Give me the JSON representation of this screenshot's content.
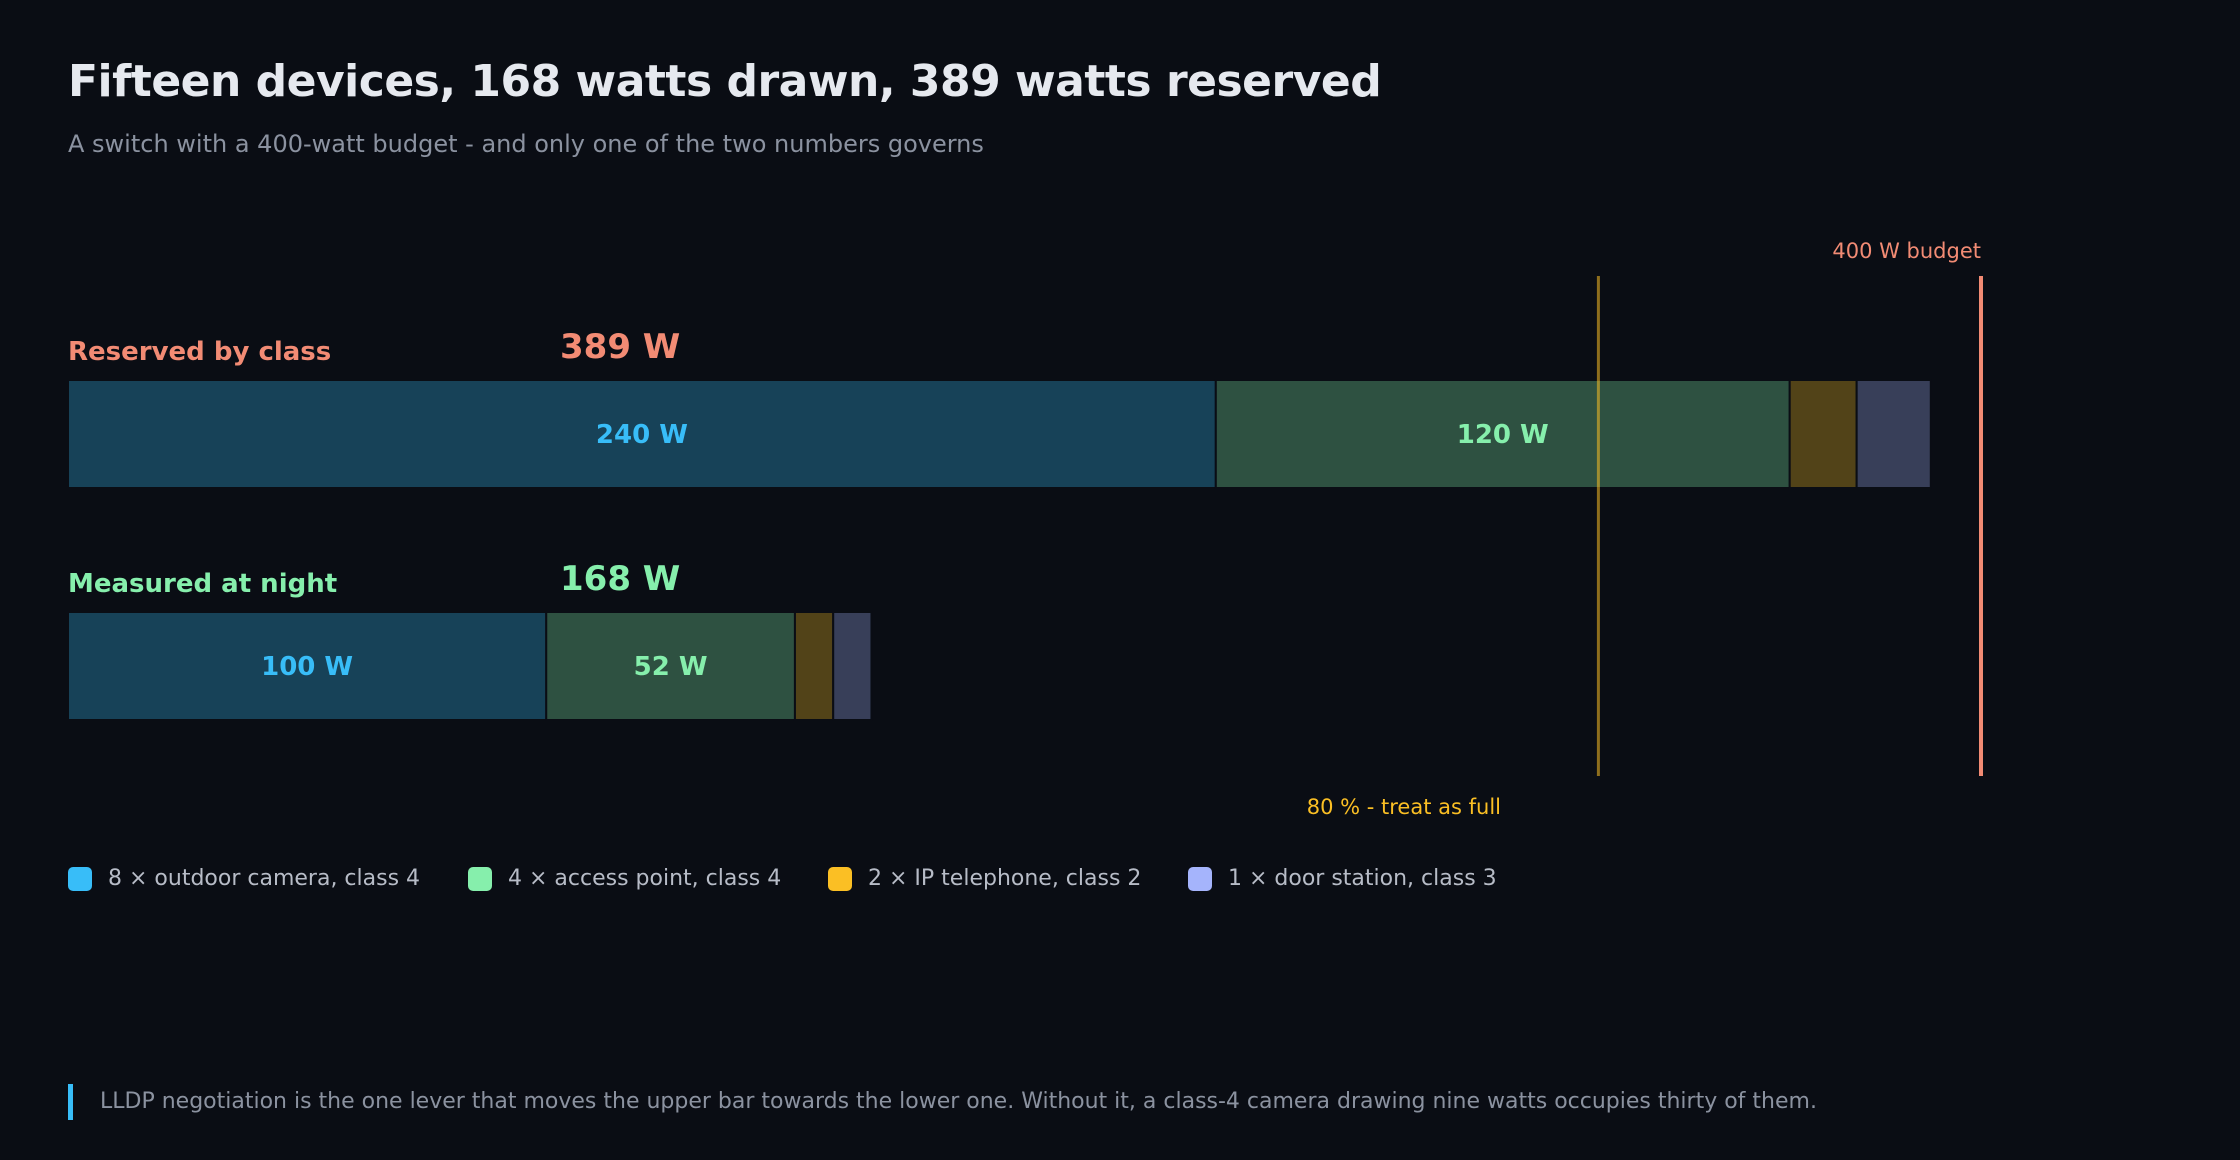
{
  "header": {
    "title": "Fifteen devices, 168 watts drawn, 389 watts reserved",
    "subtitle": "A switch with a 400-watt budget - and only one of the two numbers governs"
  },
  "colors": {
    "background": "#0a0d14",
    "camera": "#38bdf8",
    "access_point": "#86efac",
    "telephone": "#fbbf24",
    "door_station": "#a5b4fc",
    "budget_line": "#f28b74",
    "threshold_line": "#fbbf24",
    "reserved_label": "#f28b74",
    "measured_label": "#86efac"
  },
  "chart_data": {
    "type": "bar",
    "orientation": "horizontal",
    "stacked": true,
    "xlim": [
      0,
      420
    ],
    "rows": [
      {
        "label": "Reserved by class",
        "total_label": "389 W",
        "total": 389
      },
      {
        "label": "Measured at night",
        "total_label": "168 W",
        "total": 168
      }
    ],
    "series": [
      {
        "name": "8 × outdoor camera, class 4",
        "values": [
          240,
          100
        ],
        "value_labels": [
          "240 W",
          "100 W"
        ]
      },
      {
        "name": "4 × access point, class 4",
        "values": [
          120,
          52
        ],
        "value_labels": [
          "120 W",
          "52 W"
        ]
      },
      {
        "name": "2 × IP telephone, class 2",
        "values": [
          14,
          8
        ],
        "value_labels": [
          "",
          ""
        ]
      },
      {
        "name": "1 × door station, class 3",
        "values": [
          15.5,
          8
        ],
        "value_labels": [
          "",
          ""
        ]
      }
    ],
    "reference_lines": [
      {
        "value": 320,
        "label": "80 % - treat as full",
        "label_position": "below"
      },
      {
        "value": 400,
        "label": "400 W budget",
        "label_position": "above"
      }
    ],
    "grid": false,
    "legend_position": "bottom-left"
  },
  "legend": [
    {
      "label": "8 × outdoor camera, class 4",
      "color": "#38bdf8"
    },
    {
      "label": "4 × access point, class 4",
      "color": "#86efac"
    },
    {
      "label": "2 × IP telephone, class 2",
      "color": "#fbbf24"
    },
    {
      "label": "1 × door station, class 3",
      "color": "#a5b4fc"
    }
  ],
  "note": {
    "text": "LLDP negotiation is the one lever that moves the upper bar towards the lower one. Without it, a class-4 camera drawing nine watts occupies thirty of them."
  }
}
